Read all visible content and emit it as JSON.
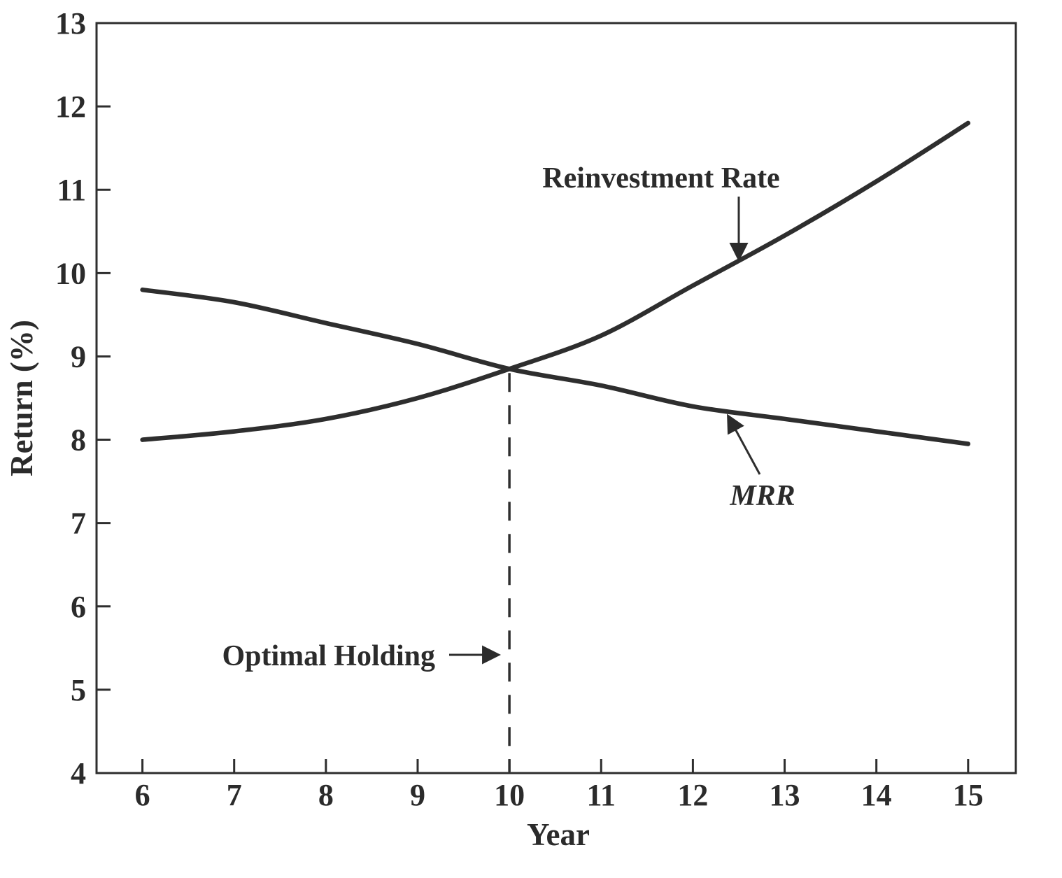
{
  "page": {
    "background": "#ffffff"
  },
  "chart_data": {
    "type": "line",
    "title": "",
    "xlabel": "Year",
    "ylabel": "Return (%)",
    "x": [
      6,
      7,
      8,
      9,
      10,
      11,
      12,
      13,
      14,
      15
    ],
    "series": [
      {
        "name": "MRR",
        "values": [
          9.8,
          9.65,
          9.4,
          9.15,
          8.85,
          8.65,
          8.4,
          8.25,
          8.1,
          7.95
        ]
      },
      {
        "name": "Reinvestment Rate",
        "values": [
          8.0,
          8.1,
          8.25,
          8.5,
          8.85,
          9.25,
          9.85,
          10.45,
          11.1,
          11.8
        ]
      }
    ],
    "xlim": [
      5.5,
      15.52
    ],
    "ylim": [
      4,
      13
    ],
    "x_ticks": [
      6,
      7,
      8,
      9,
      10,
      11,
      12,
      13,
      14,
      15
    ],
    "y_ticks": [
      4,
      5,
      6,
      7,
      8,
      9,
      10,
      11,
      12,
      13
    ],
    "grid": false,
    "legend_position": "none",
    "line_color": "#2e2e2e",
    "text_color": "#2b2b2b",
    "intersection": {
      "x": 10,
      "y": 8.85
    },
    "annotations": {
      "reinvestment": {
        "text": "Reinvestment Rate"
      },
      "mrr": {
        "text": "MRR"
      },
      "optimal": {
        "text": "Optimal Holding"
      }
    }
  }
}
